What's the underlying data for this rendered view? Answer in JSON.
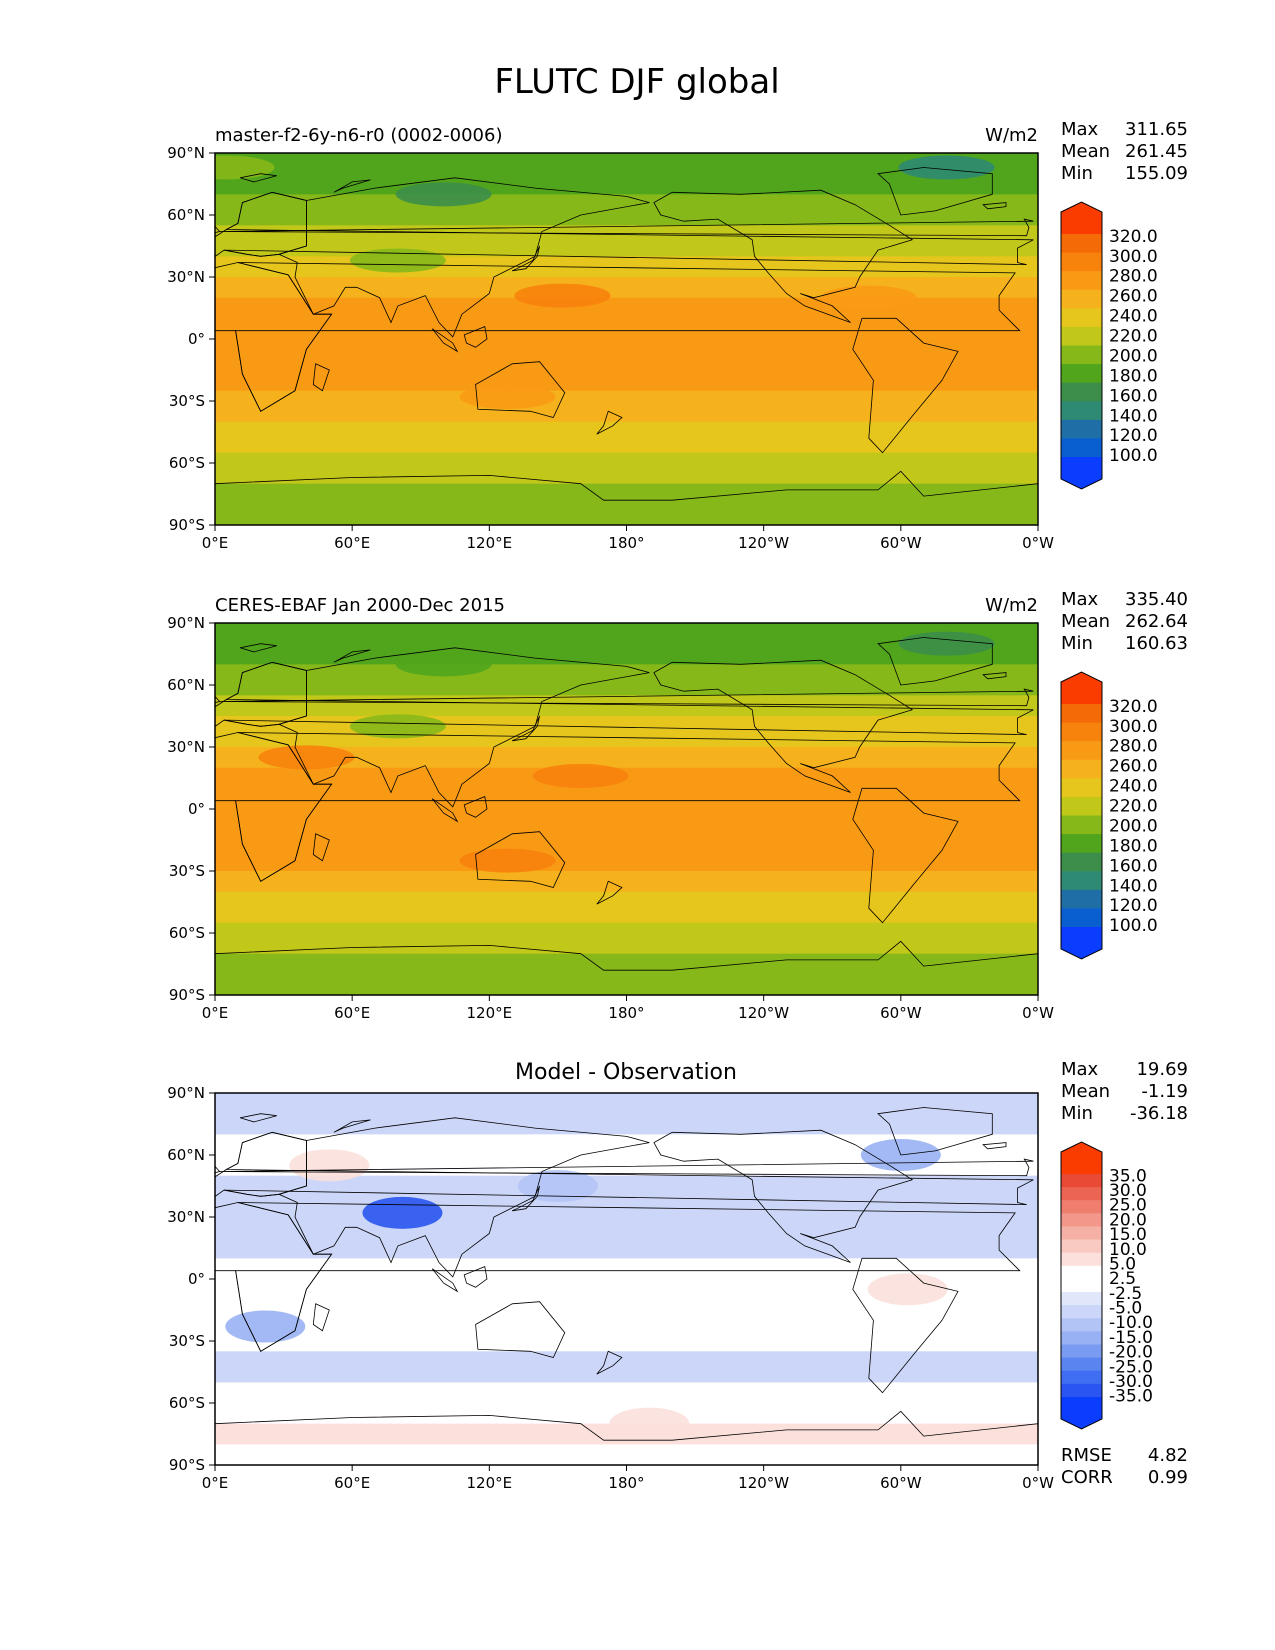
{
  "figure": {
    "title": "FLUTC DJF global"
  },
  "colors": {
    "field_levels": [
      "#0b3dff",
      "#0a5fd0",
      "#1f6fa6",
      "#2e8a72",
      "#3c8e4a",
      "#50a51c",
      "#86b81a",
      "#c2c81a",
      "#e6c51c",
      "#f6b21c",
      "#f99a15",
      "#f7820c",
      "#f46a07",
      "#fb3c00"
    ],
    "diff_levels": [
      "#0b3dff",
      "#2a55f0",
      "#3f6ef2",
      "#5a84f0",
      "#7a9bf2",
      "#98b1f4",
      "#b2c4f6",
      "#cbd6f8",
      "#e0e7fa",
      "#ffffff",
      "#ffffff",
      "#fbe0dc",
      "#f8cac2",
      "#f5b1a6",
      "#f3978a",
      "#f07e6f",
      "#ec6553",
      "#e94a36",
      "#fb3c00"
    ],
    "coastline": "#000000"
  },
  "chart_data": [
    {
      "type": "heatmap",
      "title_left": "master-f2-6y-n6-r0 (0002-0006)",
      "title_right": "W/m2",
      "stats": {
        "Max": "311.65",
        "Mean": "261.45",
        "Min": "155.09"
      },
      "colorbar": {
        "extend": "both",
        "levels": [
          "320.0",
          "300.0",
          "280.0",
          "260.0",
          "240.0",
          "220.0",
          "200.0",
          "180.0",
          "160.0",
          "140.0",
          "120.0",
          "100.0"
        ]
      },
      "x_ticks": [
        "0°E",
        "60°E",
        "120°E",
        "180°",
        "120°W",
        "60°W",
        "0°W"
      ],
      "y_ticks": [
        "90°N",
        "60°N",
        "30°N",
        "0°",
        "30°S",
        "60°S",
        "90°S"
      ],
      "xlim": [
        0,
        360
      ],
      "ylim": [
        -90,
        90
      ],
      "latitude_profile": [
        {
          "lat": 90,
          "value": 180
        },
        {
          "lat": 75,
          "value": 190
        },
        {
          "lat": 60,
          "value": 210
        },
        {
          "lat": 45,
          "value": 235
        },
        {
          "lat": 30,
          "value": 255
        },
        {
          "lat": 15,
          "value": 285
        },
        {
          "lat": 0,
          "value": 280
        },
        {
          "lat": -15,
          "value": 285
        },
        {
          "lat": -30,
          "value": 275
        },
        {
          "lat": -45,
          "value": 250
        },
        {
          "lat": -60,
          "value": 230
        },
        {
          "lat": -75,
          "value": 210
        },
        {
          "lat": -90,
          "value": 200
        }
      ],
      "anomalies": [
        {
          "lon": 152,
          "lat": 21,
          "value": 302
        },
        {
          "lon": 286,
          "lat": 20,
          "value": 298
        },
        {
          "lon": 128,
          "lat": -28,
          "value": 298
        },
        {
          "lon": 320,
          "lat": 83,
          "value": 150
        },
        {
          "lon": 100,
          "lat": 70,
          "value": 175
        },
        {
          "lon": 80,
          "lat": 38,
          "value": 215
        },
        {
          "lon": 5,
          "lat": 83,
          "value": 205
        }
      ]
    },
    {
      "type": "heatmap",
      "title_left": "CERES-EBAF Jan 2000-Dec 2015",
      "title_right": "W/m2",
      "stats": {
        "Max": "335.40",
        "Mean": "262.64",
        "Min": "160.63"
      },
      "colorbar": {
        "extend": "both",
        "levels": [
          "320.0",
          "300.0",
          "280.0",
          "260.0",
          "240.0",
          "220.0",
          "200.0",
          "180.0",
          "160.0",
          "140.0",
          "120.0",
          "100.0"
        ]
      },
      "x_ticks": [
        "0°E",
        "60°E",
        "120°E",
        "180°",
        "120°W",
        "60°W",
        "0°W"
      ],
      "y_ticks": [
        "90°N",
        "60°N",
        "30°N",
        "0°",
        "30°S",
        "60°S",
        "90°S"
      ],
      "xlim": [
        0,
        360
      ],
      "ylim": [
        -90,
        90
      ],
      "latitude_profile": [
        {
          "lat": 90,
          "value": 185
        },
        {
          "lat": 75,
          "value": 195
        },
        {
          "lat": 60,
          "value": 215
        },
        {
          "lat": 45,
          "value": 240
        },
        {
          "lat": 30,
          "value": 262
        },
        {
          "lat": 15,
          "value": 290
        },
        {
          "lat": 0,
          "value": 282
        },
        {
          "lat": -15,
          "value": 288
        },
        {
          "lat": -30,
          "value": 280
        },
        {
          "lat": -45,
          "value": 255
        },
        {
          "lat": -60,
          "value": 232
        },
        {
          "lat": -75,
          "value": 212
        },
        {
          "lat": -90,
          "value": 200
        }
      ],
      "anomalies": [
        {
          "lon": 160,
          "lat": 16,
          "value": 302
        },
        {
          "lon": 40,
          "lat": 25,
          "value": 300
        },
        {
          "lon": 128,
          "lat": -25,
          "value": 305
        },
        {
          "lon": 320,
          "lat": 80,
          "value": 170
        },
        {
          "lon": 100,
          "lat": 70,
          "value": 180
        },
        {
          "lon": 80,
          "lat": 40,
          "value": 210
        }
      ]
    },
    {
      "type": "heatmap",
      "title_center": "Model - Observation",
      "stats": {
        "Max": "19.69",
        "Mean": "-1.19",
        "Min": "-36.18"
      },
      "extra_stats": {
        "RMSE": "4.82",
        "CORR": "0.99"
      },
      "colorbar": {
        "extend": "both",
        "levels": [
          "35.0",
          "30.0",
          "25.0",
          "20.0",
          "15.0",
          "10.0",
          "5.0",
          "2.5",
          "-2.5",
          "-5.0",
          "-10.0",
          "-15.0",
          "-20.0",
          "-25.0",
          "-30.0",
          "-35.0"
        ]
      },
      "x_ticks": [
        "0°E",
        "60°E",
        "120°E",
        "180°",
        "120°W",
        "60°W",
        "0°W"
      ],
      "y_ticks": [
        "90°N",
        "60°N",
        "30°N",
        "0°",
        "30°S",
        "60°S",
        "90°S"
      ],
      "xlim": [
        0,
        360
      ],
      "ylim": [
        -90,
        90
      ],
      "latitude_profile": [
        {
          "lat": 90,
          "value": -3
        },
        {
          "lat": 75,
          "value": -4
        },
        {
          "lat": 60,
          "value": -1
        },
        {
          "lat": 45,
          "value": -3
        },
        {
          "lat": 30,
          "value": -5
        },
        {
          "lat": 15,
          "value": -4
        },
        {
          "lat": 0,
          "value": 3
        },
        {
          "lat": -15,
          "value": 0
        },
        {
          "lat": -30,
          "value": -2
        },
        {
          "lat": -45,
          "value": -5
        },
        {
          "lat": -60,
          "value": 4
        },
        {
          "lat": -75,
          "value": 6
        },
        {
          "lat": -90,
          "value": 1
        }
      ],
      "anomalies": [
        {
          "lon": 82,
          "lat": 32,
          "value": -30
        },
        {
          "lon": 50,
          "lat": 55,
          "value": 8
        },
        {
          "lon": 22,
          "lat": -23,
          "value": -12
        },
        {
          "lon": 303,
          "lat": -5,
          "value": 10
        },
        {
          "lon": 150,
          "lat": 45,
          "value": -8
        },
        {
          "lon": 300,
          "lat": 60,
          "value": -10
        },
        {
          "lon": 190,
          "lat": -70,
          "value": 8
        }
      ]
    }
  ]
}
